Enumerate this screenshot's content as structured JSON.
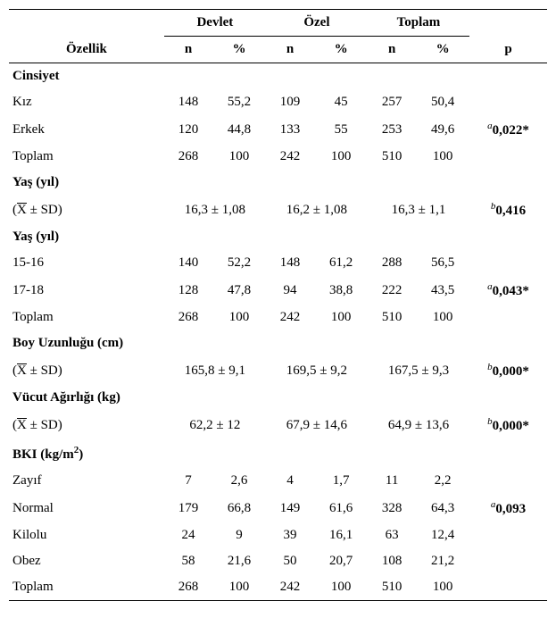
{
  "header": {
    "ozellik": "Özellik",
    "devlet": "Devlet",
    "ozel": "Özel",
    "toplam": "Toplam",
    "n": "n",
    "pct": "%",
    "p": "p"
  },
  "mean_sd_label": "(X̄ ± SD)",
  "sections": {
    "cinsiyet": {
      "title": "Cinsiyet",
      "rows": [
        {
          "label": "Kız",
          "devlet_n": "148",
          "devlet_pct": "55,2",
          "ozel_n": "109",
          "ozel_pct": "45",
          "toplam_n": "257",
          "toplam_pct": "50,4",
          "p": ""
        },
        {
          "label": "Erkek",
          "devlet_n": "120",
          "devlet_pct": "44,8",
          "ozel_n": "133",
          "ozel_pct": "55",
          "toplam_n": "253",
          "toplam_pct": "49,6",
          "p": "0,022*",
          "sup": "a"
        },
        {
          "label": "Toplam",
          "devlet_n": "268",
          "devlet_pct": "100",
          "ozel_n": "242",
          "ozel_pct": "100",
          "toplam_n": "510",
          "toplam_pct": "100",
          "p": ""
        }
      ]
    },
    "yas_mean": {
      "title": "Yaş (yıl)",
      "devlet": "16,3 ± 1,08",
      "ozel": "16,2 ± 1,08",
      "toplam": "16,3 ± 1,1",
      "p": "0,416",
      "sup": "b"
    },
    "yas_cat": {
      "title": "Yaş (yıl)",
      "rows": [
        {
          "label": "15-16",
          "devlet_n": "140",
          "devlet_pct": "52,2",
          "ozel_n": "148",
          "ozel_pct": "61,2",
          "toplam_n": "288",
          "toplam_pct": "56,5",
          "p": ""
        },
        {
          "label": "17-18",
          "devlet_n": "128",
          "devlet_pct": "47,8",
          "ozel_n": "94",
          "ozel_pct": "38,8",
          "toplam_n": "222",
          "toplam_pct": "43,5",
          "p": "0,043*",
          "sup": "a"
        },
        {
          "label": "Toplam",
          "devlet_n": "268",
          "devlet_pct": "100",
          "ozel_n": "242",
          "ozel_pct": "100",
          "toplam_n": "510",
          "toplam_pct": "100",
          "p": ""
        }
      ]
    },
    "boy": {
      "title": "Boy Uzunluğu (cm)",
      "devlet": "165,8 ± 9,1",
      "ozel": "169,5 ± 9,2",
      "toplam": "167,5 ± 9,3",
      "p": "0,000*",
      "sup": "b"
    },
    "vucut": {
      "title": "Vücut Ağırlığı (kg)",
      "devlet": "62,2 ± 12",
      "ozel": "67,9 ± 14,6",
      "toplam": "64,9  ± 13,6",
      "p": "0,000*",
      "sup": "b"
    },
    "bki": {
      "title_pre": "BKI (kg/m",
      "title_sup": "2",
      "title_post": ")",
      "rows": [
        {
          "label": "Zayıf",
          "devlet_n": "7",
          "devlet_pct": "2,6",
          "ozel_n": "4",
          "ozel_pct": "1,7",
          "toplam_n": "11",
          "toplam_pct": "2,2",
          "p": ""
        },
        {
          "label": "Normal",
          "devlet_n": "179",
          "devlet_pct": "66,8",
          "ozel_n": "149",
          "ozel_pct": "61,6",
          "toplam_n": "328",
          "toplam_pct": "64,3",
          "p": "0,093",
          "sup": "a"
        },
        {
          "label": "Kilolu",
          "devlet_n": "24",
          "devlet_pct": "9",
          "ozel_n": "39",
          "ozel_pct": "16,1",
          "toplam_n": "63",
          "toplam_pct": "12,4",
          "p": ""
        },
        {
          "label": "Obez",
          "devlet_n": "58",
          "devlet_pct": "21,6",
          "ozel_n": "50",
          "ozel_pct": "20,7",
          "toplam_n": "108",
          "toplam_pct": "21,2",
          "p": ""
        },
        {
          "label": "Toplam",
          "devlet_n": "268",
          "devlet_pct": "100",
          "ozel_n": "242",
          "ozel_pct": "100",
          "toplam_n": "510",
          "toplam_pct": "100",
          "p": ""
        }
      ]
    }
  }
}
